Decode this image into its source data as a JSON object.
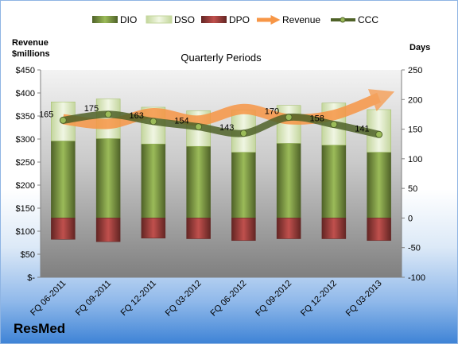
{
  "chart_data": {
    "type": "bar",
    "title": "Quarterly Periods",
    "left_axis_title_line1": "Revenue",
    "left_axis_title_line2": "$millions",
    "right_axis_title": "Days",
    "company": "ResMed",
    "left_ticks": [
      "$450",
      "$400",
      "$350",
      "$300",
      "$250",
      "$200",
      "$150",
      "$100",
      "$50",
      "$-"
    ],
    "right_ticks": [
      "250",
      "200",
      "150",
      "100",
      "50",
      "0",
      "-50",
      "-100"
    ],
    "left_ylim": [
      0,
      450
    ],
    "right_ylim": [
      -100,
      250
    ],
    "categories": [
      "FQ 06-2011",
      "FQ 09-2011",
      "FQ 12-2011",
      "FQ 03-2012",
      "FQ 06-2012",
      "FQ 09-2012",
      "FQ 12-2012",
      "FQ 03-2013"
    ],
    "legend": [
      "DIO",
      "DSO",
      "DPO",
      "Revenue",
      "CCC"
    ],
    "series": [
      {
        "name": "DIO",
        "axis": "days",
        "values": [
          130,
          134,
          125,
          121,
          111,
          126,
          123,
          111
        ]
      },
      {
        "name": "DSO",
        "axis": "days",
        "values": [
          66,
          67,
          62,
          60,
          71,
          64,
          71,
          72
        ]
      },
      {
        "name": "DPO",
        "axis": "days",
        "values": [
          -36,
          -40,
          -34,
          -35,
          -38,
          -35,
          -35,
          -38
        ]
      },
      {
        "name": "Revenue",
        "axis": "revenue",
        "values": [
          343,
          333,
          356,
          340,
          365,
          343,
          352,
          390
        ]
      },
      {
        "name": "CCC",
        "axis": "days",
        "values": [
          165,
          175,
          163,
          154,
          143,
          170,
          158,
          141
        ]
      }
    ],
    "colors": {
      "DIO": "#77933c",
      "DSO": "#d7e4bd",
      "DPO": "#953735",
      "Revenue": "#f79646",
      "CCC": "#4f6228"
    },
    "grid": false,
    "legend_position": "top"
  }
}
